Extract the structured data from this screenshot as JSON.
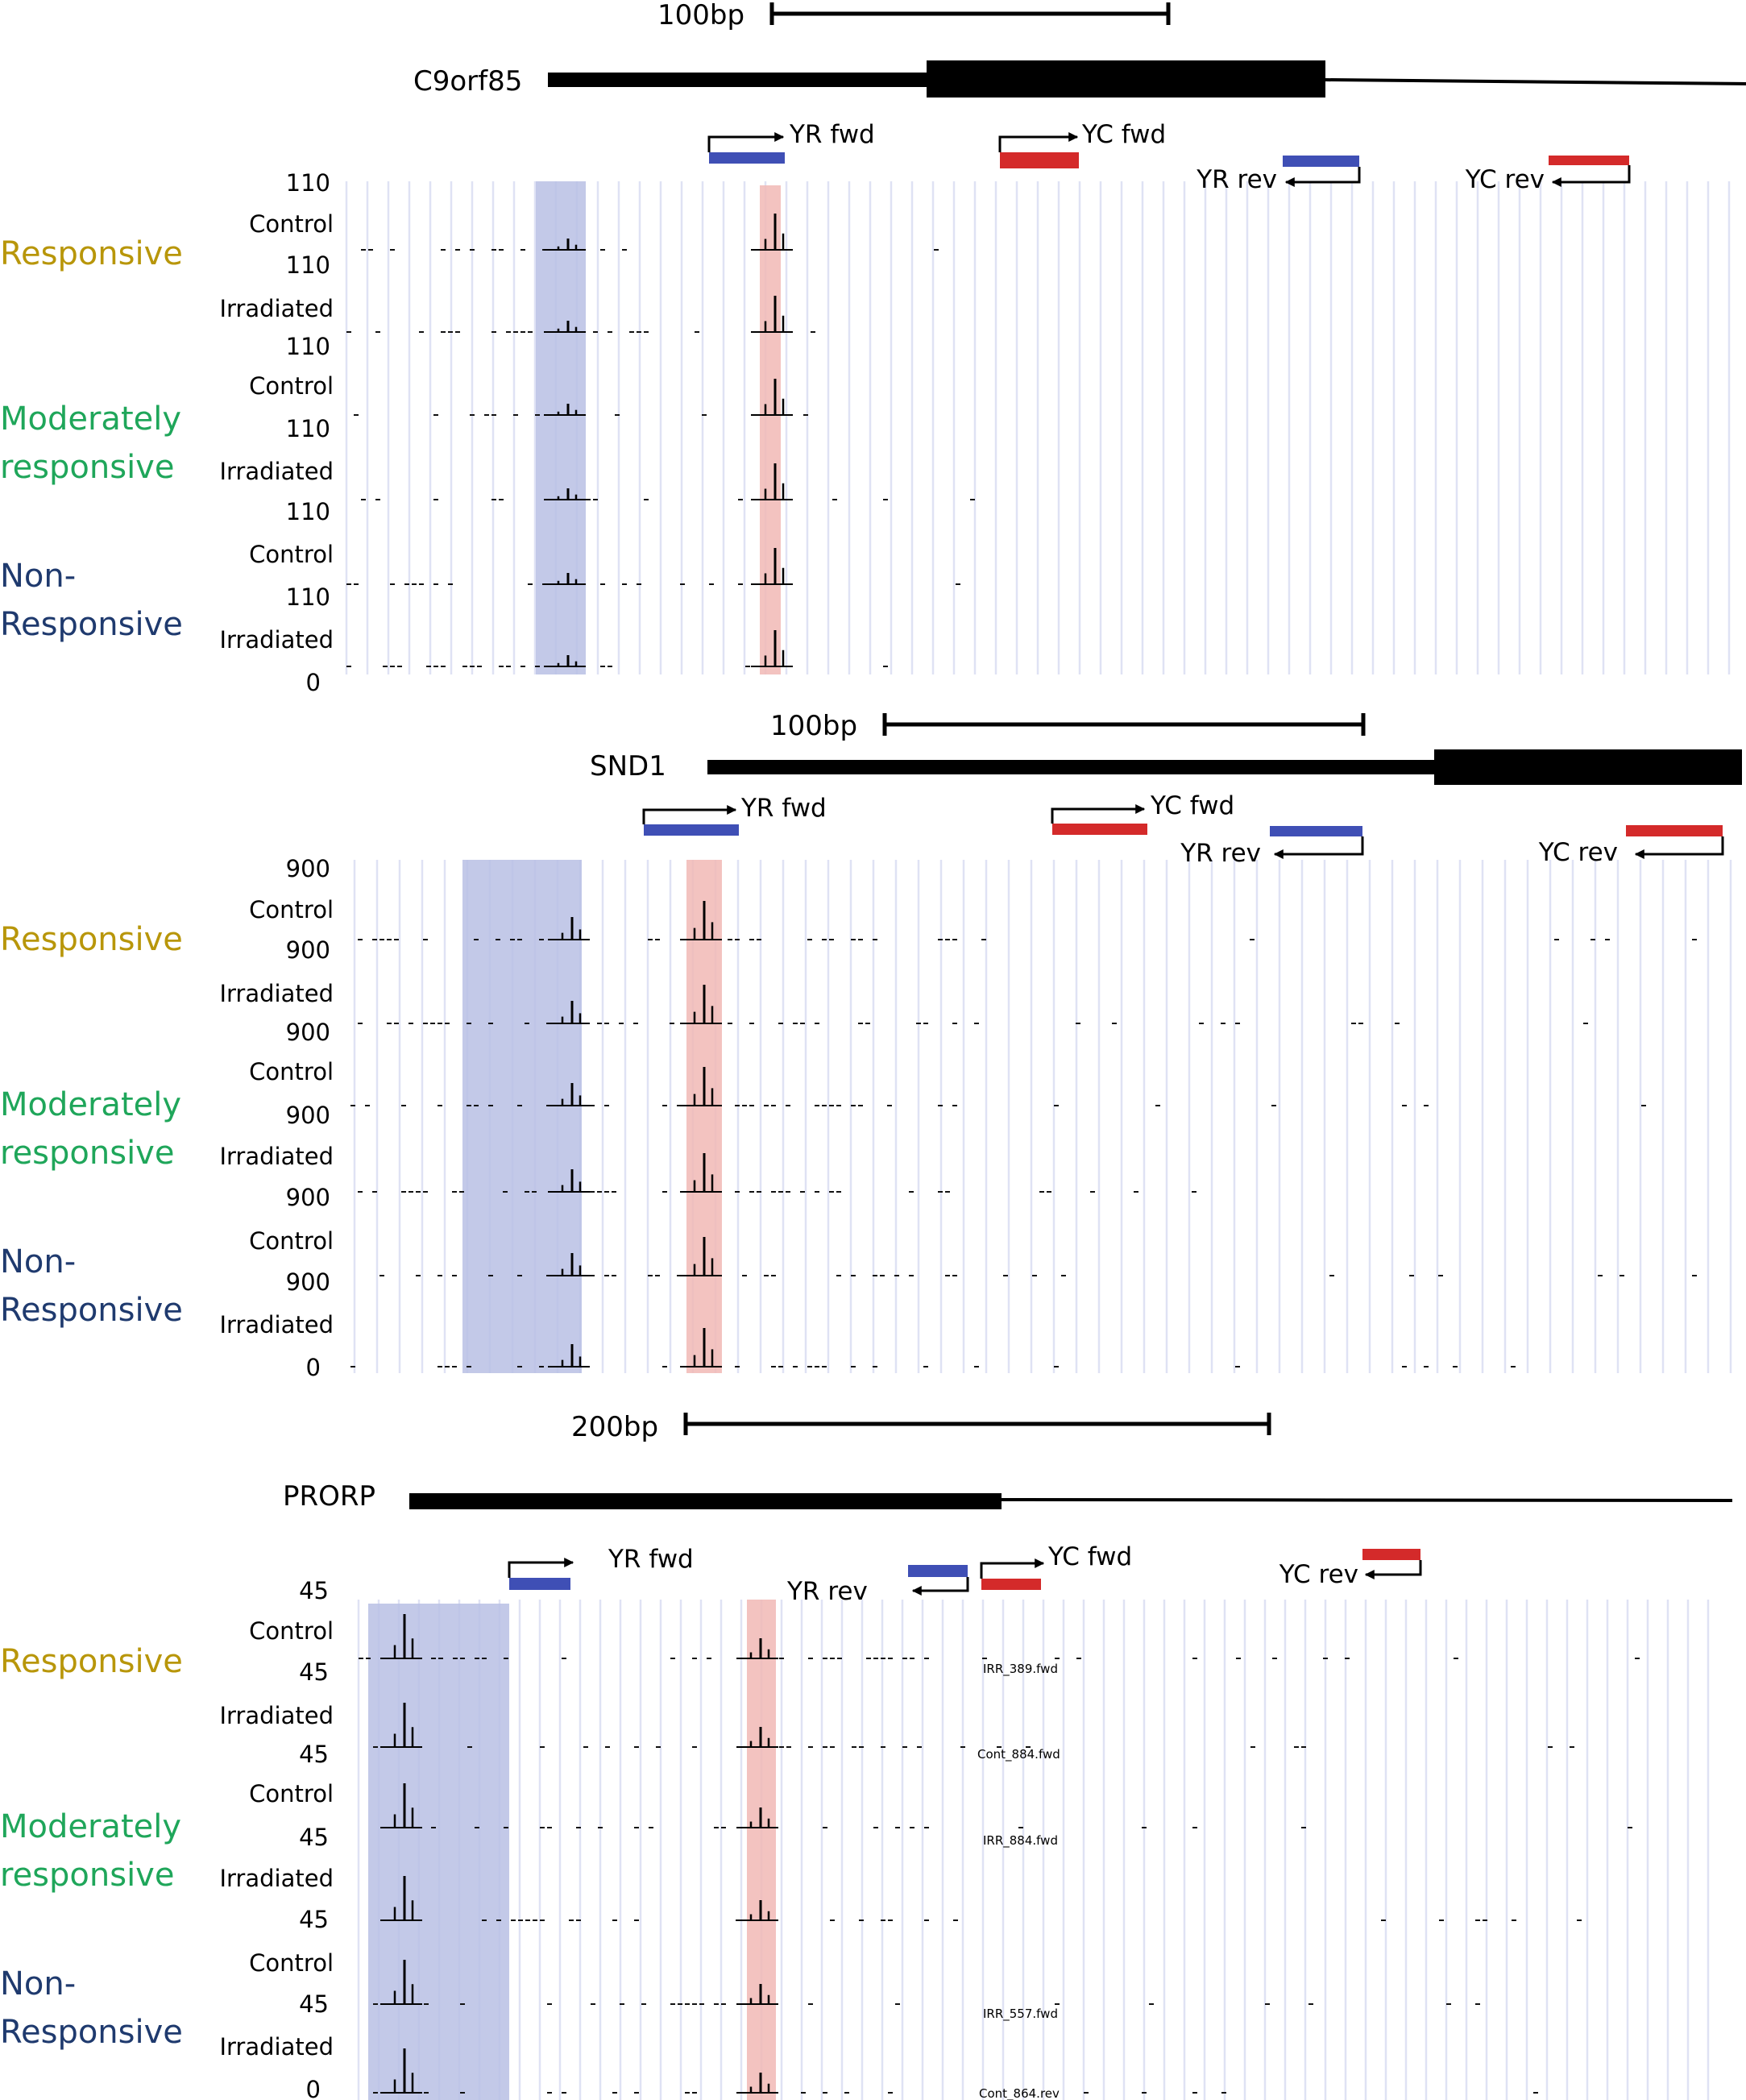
{
  "colors": {
    "responsive": "#b8960a",
    "moderately": "#1fa65a",
    "non_responsive": "#1f3a6e",
    "yr_primer": "#3f4fb5",
    "yc_primer": "#d42a2a",
    "blue_band": "#b9bfe4",
    "red_band": "#f1b9b5",
    "track_line": "#dfe2f4"
  },
  "labels": {
    "yr_fwd": "YR fwd",
    "yc_fwd": "YC fwd",
    "yr_rev": "YR rev",
    "yc_rev": "YC rev",
    "control": "Control",
    "irradiated": "Irradiated",
    "responsive": "Responsive",
    "moderately_1": "Moderately",
    "moderately_2": "responsive",
    "non_1": "Non-",
    "non_2": "Responsive"
  },
  "panels": [
    {
      "gene": "C9orf85",
      "scale_label": "100bp",
      "y_max": "110",
      "y_min": "0"
    },
    {
      "gene": "SND1",
      "scale_label": "100bp",
      "y_max": "900",
      "y_min": "0"
    },
    {
      "gene": "PRORP",
      "scale_label": "200bp",
      "y_max": "45",
      "y_min": "0",
      "track_tags": [
        "IRR_389.fwd",
        "Cont_884.fwd",
        "IRR_884.fwd",
        "IRR_557.fwd",
        "Cont_864.rev"
      ]
    }
  ]
}
